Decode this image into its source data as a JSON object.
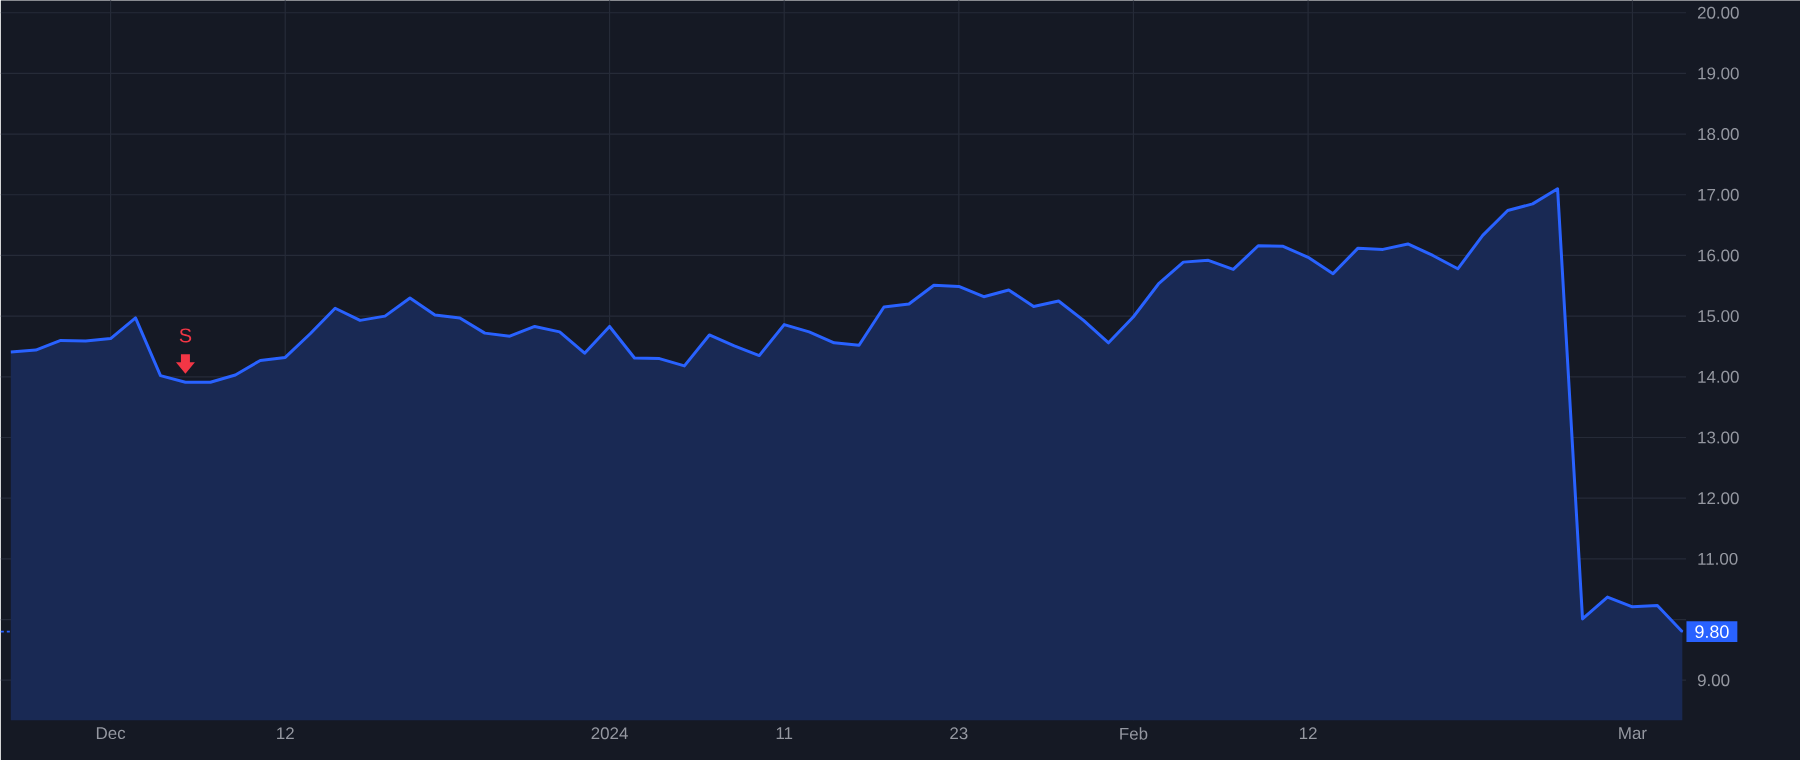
{
  "chart_data": {
    "type": "area",
    "categories": [
      null,
      null,
      null,
      null,
      "Dec",
      null,
      null,
      null,
      null,
      null,
      null,
      "12",
      null,
      null,
      null,
      null,
      null,
      null,
      null,
      null,
      null,
      null,
      null,
      null,
      "2024",
      null,
      null,
      null,
      null,
      null,
      null,
      "11",
      null,
      null,
      null,
      null,
      null,
      null,
      "23",
      null,
      null,
      null,
      null,
      null,
      null,
      "Feb",
      null,
      null,
      null,
      null,
      null,
      null,
      "12",
      null,
      null,
      null,
      null,
      null,
      null,
      null,
      null,
      null,
      null,
      null,
      null,
      "Mar",
      null,
      null
    ],
    "series": [
      {
        "color": "#2962ff",
        "values": [
          14.41,
          14.44,
          14.6,
          14.59,
          14.63,
          14.97,
          14.02,
          13.91,
          13.91,
          14.03,
          14.27,
          14.32,
          14.71,
          15.13,
          14.93,
          15.0,
          15.3,
          15.02,
          14.97,
          14.72,
          14.67,
          14.83,
          14.74,
          14.39,
          14.83,
          14.31,
          14.3,
          14.18,
          14.69,
          14.51,
          14.35,
          14.86,
          14.74,
          14.56,
          14.52,
          15.15,
          15.2,
          15.51,
          15.49,
          15.32,
          15.43,
          15.16,
          15.25,
          14.93,
          14.56,
          14.99,
          15.53,
          15.89,
          15.92,
          15.77,
          16.16,
          16.15,
          15.97,
          15.7,
          16.12,
          16.1,
          16.19,
          16.0,
          15.78,
          16.33,
          16.74,
          16.85,
          17.1,
          10.01,
          10.37,
          10.21,
          10.23,
          9.8
        ]
      }
    ],
    "ylim": [
      8.34,
      20.2
    ],
    "yticks": [
      {
        "value": 9,
        "label": "9.00"
      },
      {
        "value": 10,
        "label": null
      },
      {
        "value": 11,
        "label": "11.00"
      },
      {
        "value": 12,
        "label": "12.00"
      },
      {
        "value": 13,
        "label": "13.00"
      },
      {
        "value": 14,
        "label": "14.00"
      },
      {
        "value": 15,
        "label": "15.00"
      },
      {
        "value": 16,
        "label": "16.00"
      },
      {
        "value": 17,
        "label": "17.00"
      },
      {
        "value": 18,
        "label": "18.00"
      },
      {
        "value": 19,
        "label": "19.00"
      },
      {
        "value": 20,
        "label": "20.00"
      }
    ],
    "ref_lines": [
      {
        "axis": "y",
        "value": 9.8,
        "label": "9.80",
        "color": "#2962ff",
        "line_style": "dotted"
      }
    ],
    "annotations": [
      "S"
    ],
    "grid": true
  }
}
